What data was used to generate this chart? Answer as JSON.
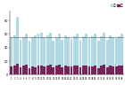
{
  "n_groups": 38,
  "blue_values": [
    55,
    58,
    85,
    52,
    55,
    60,
    50,
    55,
    58,
    60,
    62,
    55,
    58,
    62,
    50,
    55,
    60,
    52,
    58,
    55,
    53,
    57,
    60,
    52,
    56,
    60,
    54,
    56,
    60,
    50,
    57,
    62,
    52,
    58,
    55,
    54,
    57,
    60
  ],
  "red_values": [
    12,
    14,
    16,
    11,
    13,
    15,
    10,
    12,
    11,
    14,
    14,
    12,
    13,
    15,
    11,
    13,
    15,
    11,
    14,
    12,
    12,
    13,
    14,
    11,
    13,
    14,
    12,
    12,
    14,
    10,
    13,
    15,
    11,
    14,
    12,
    12,
    13,
    14
  ],
  "hline_value": 55,
  "bar_color_blue": "#b0d8e5",
  "bar_color_red": "#7b2059",
  "hline_color": "#555555",
  "bg_color": "#ffffff",
  "legend_label_blue": "総数",
  "legend_label_red": "女性",
  "bar_width": 0.85,
  "figsize": [
    1.4,
    0.96
  ],
  "dpi": 100,
  "ylim_max": 95,
  "hline_lw": 0.4
}
